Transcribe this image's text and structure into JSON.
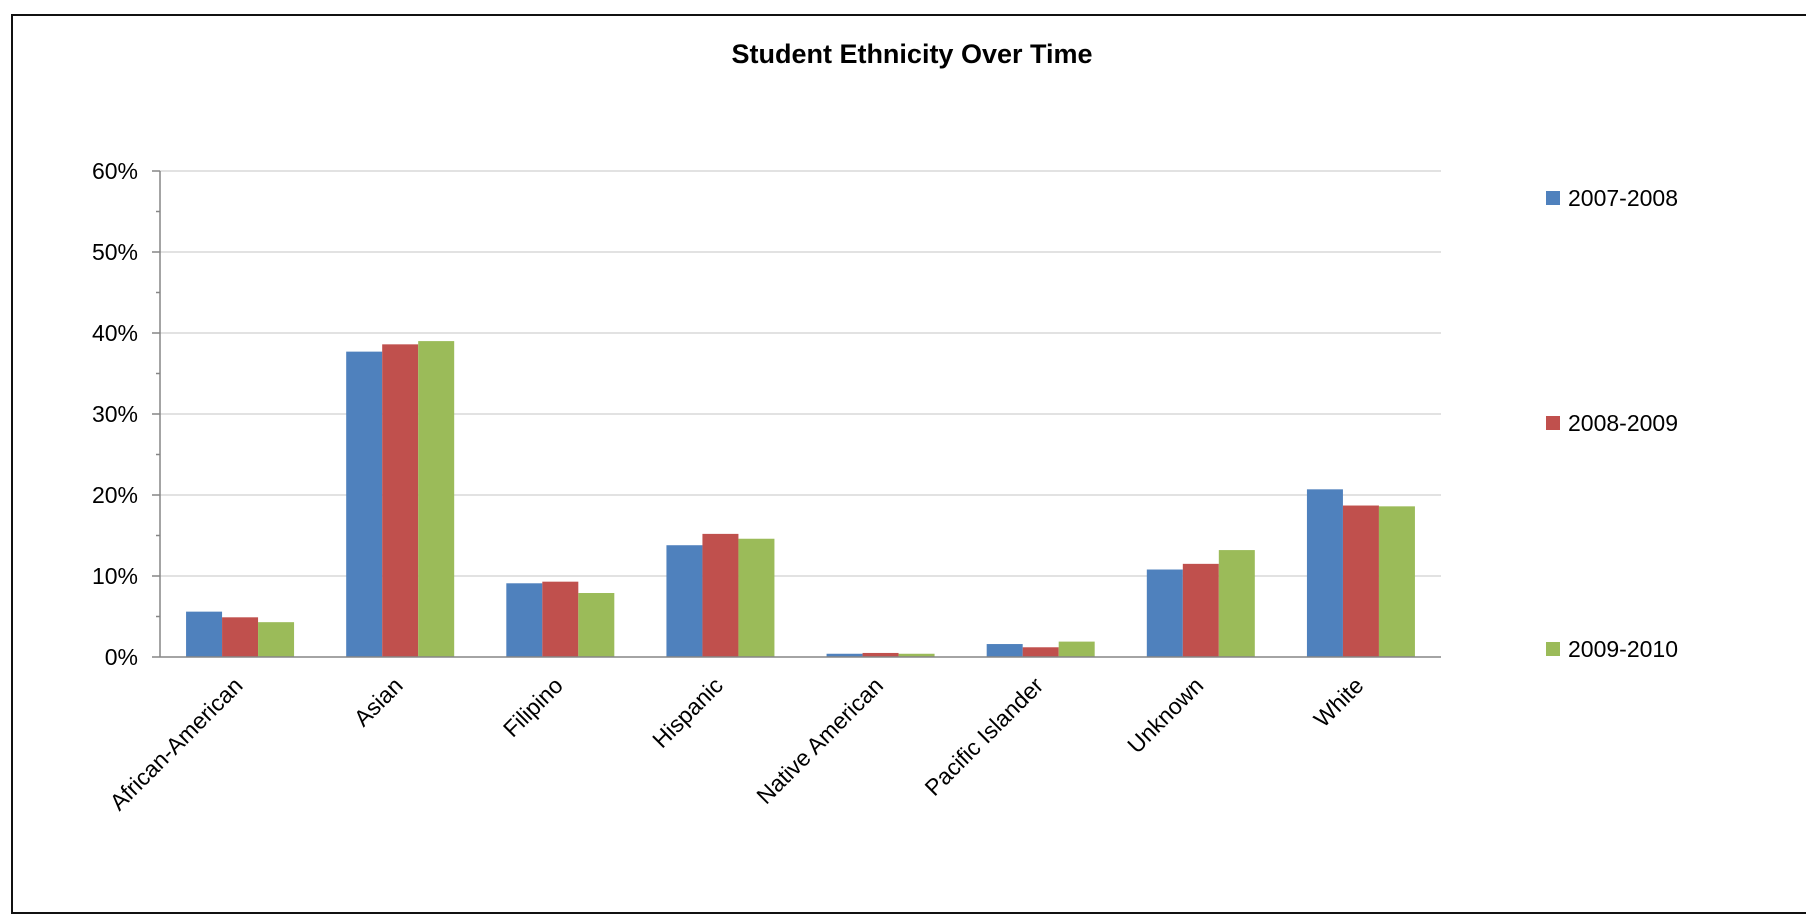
{
  "chart_data": {
    "type": "bar",
    "title": "Student Ethnicity Over Time",
    "xlabel": "",
    "ylabel": "",
    "categories": [
      "African-American",
      "Asian",
      "Filipino",
      "Hispanic",
      "Native American",
      "Pacific Islander",
      "Unknown",
      "White"
    ],
    "series": [
      {
        "name": "2007-2008",
        "color": "#4F81BD",
        "values": [
          5.6,
          37.7,
          9.1,
          13.8,
          0.4,
          1.6,
          10.8,
          20.7
        ]
      },
      {
        "name": "2008-2009",
        "color": "#C0504D",
        "values": [
          4.9,
          38.6,
          9.3,
          15.2,
          0.5,
          1.2,
          11.5,
          18.7
        ]
      },
      {
        "name": "2009-2010",
        "color": "#9BBB59",
        "values": [
          4.3,
          39.0,
          7.9,
          14.6,
          0.4,
          1.9,
          13.2,
          18.6
        ]
      }
    ],
    "ylim": [
      0,
      60
    ],
    "y_ticks": [
      "0%",
      "10%",
      "20%",
      "30%",
      "40%",
      "50%",
      "60%"
    ],
    "grid": true,
    "legend_position": "right"
  }
}
